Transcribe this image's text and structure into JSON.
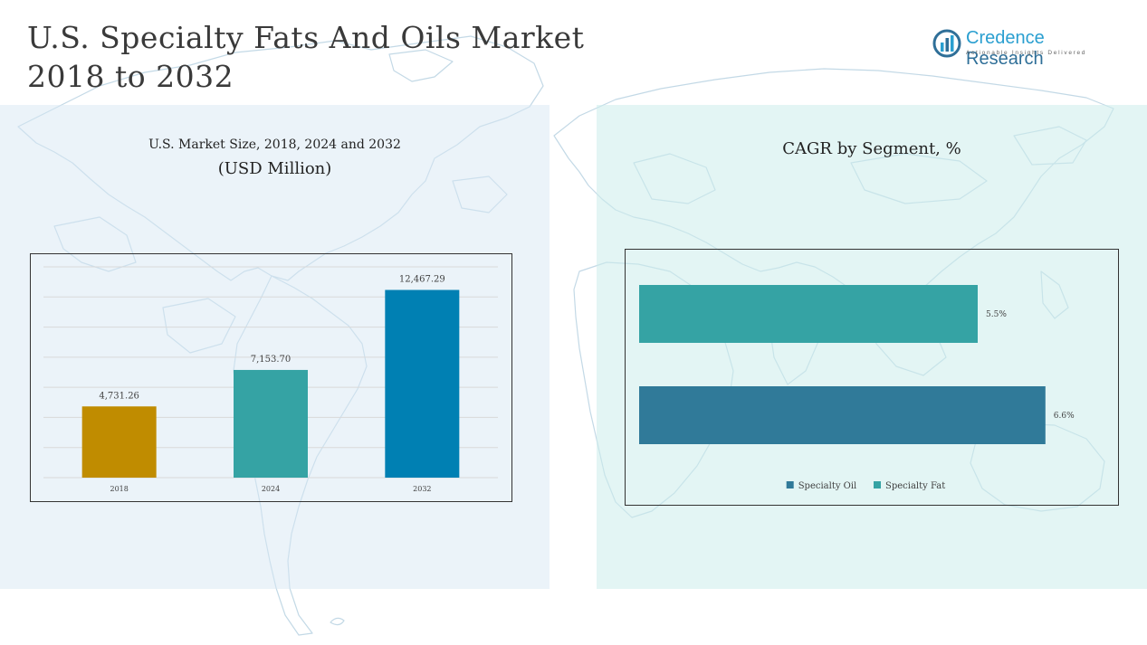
{
  "header": {
    "title_line1": "U.S. Specialty Fats And Oils Market",
    "title_line2": "2018 to 2032"
  },
  "logo": {
    "brand_first": "Credence",
    "brand_second": "Research",
    "tagline": "Actionable Insights Delivered",
    "icon": "bar-chart-circle-icon"
  },
  "colors": {
    "title": "#3a3a3a",
    "bar_2018": "#C08C00",
    "bar_2024": "#35A3A4",
    "bar_2032": "#0080B3",
    "specialty_oil": "#307A99",
    "specialty_fat": "#35A3A4"
  },
  "chart_data": [
    {
      "type": "bar",
      "title": "U.S. Market Size, 2018, 2024 and 2032",
      "subtitle": "(USD Million)",
      "categories": [
        "2018",
        "2024",
        "2032"
      ],
      "values": [
        4731.26,
        7153.7,
        12467.29
      ],
      "data_labels": [
        "4,731.26",
        "7,153.70",
        "12,467.29"
      ],
      "colors": [
        "#C08C00",
        "#35A3A4",
        "#0080B3"
      ],
      "ylim": [
        0,
        14000
      ],
      "grid": true,
      "legend": "none"
    },
    {
      "type": "bar",
      "orientation": "horizontal",
      "title": "CAGR by Segment, %",
      "categories": [
        "Specialty Fat",
        "Specialty Oil"
      ],
      "values": [
        5.5,
        6.6
      ],
      "data_labels": [
        "5.5%",
        "6.6%"
      ],
      "colors": [
        "#35A3A4",
        "#307A99"
      ],
      "xlim": [
        0,
        7
      ],
      "legend": "bottom",
      "legend_entries": [
        {
          "label": "Specialty Oil",
          "color": "#307A99"
        },
        {
          "label": "Specialty Fat",
          "color": "#35A3A4"
        }
      ]
    }
  ]
}
